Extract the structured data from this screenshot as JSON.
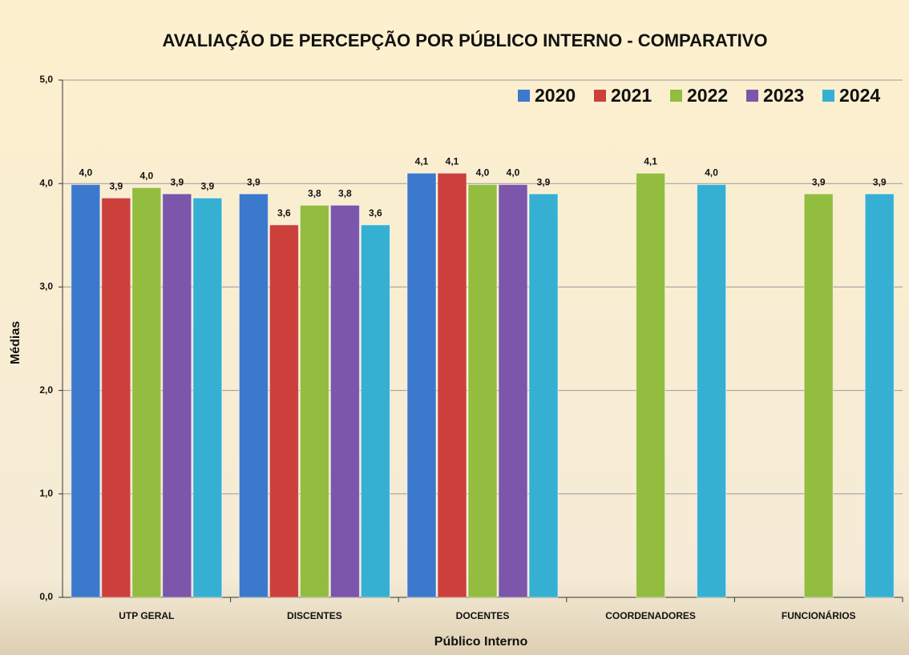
{
  "chart_data": {
    "type": "bar",
    "title": "AVALIAÇÃO DE PERCEPÇÃO POR PÚBLICO INTERNO - COMPARATIVO",
    "x_label": "Público Interno",
    "y_label": "Médias",
    "categories": [
      "UTP GERAL",
      "DISCENTES",
      "DOCENTES",
      "COORDENADORES",
      "FUNCIONÁRIOS"
    ],
    "series": [
      {
        "name": "2020",
        "color": "#3b79cc",
        "values": [
          3.99,
          3.9,
          4.1,
          null,
          null
        ],
        "value_labels": [
          "4,0",
          "3,9",
          "4,1",
          null,
          null
        ]
      },
      {
        "name": "2021",
        "color": "#cc403c",
        "values": [
          3.86,
          3.6,
          4.1,
          null,
          null
        ],
        "value_labels": [
          "3,9",
          "3,6",
          "4,1",
          null,
          null
        ]
      },
      {
        "name": "2022",
        "color": "#92bd3e",
        "values": [
          3.96,
          3.79,
          3.99,
          4.1,
          3.9
        ],
        "value_labels": [
          "4,0",
          "3,8",
          "4,0",
          "4,1",
          "3,9"
        ]
      },
      {
        "name": "2023",
        "color": "#7b56aa",
        "values": [
          3.9,
          3.79,
          3.99,
          null,
          null
        ],
        "value_labels": [
          "3,9",
          "3,8",
          "4,0",
          null,
          null
        ]
      },
      {
        "name": "2024",
        "color": "#35b0d3",
        "values": [
          3.86,
          3.6,
          3.9,
          3.99,
          3.9
        ],
        "value_labels": [
          "3,9",
          "3,6",
          "3,9",
          "4,0",
          "3,9"
        ]
      }
    ],
    "ylim": [
      0,
      5
    ],
    "yticks": [
      {
        "value": 0,
        "label": "0,0"
      },
      {
        "value": 1,
        "label": "1,0"
      },
      {
        "value": 2,
        "label": "2,0"
      },
      {
        "value": 3,
        "label": "3,0"
      },
      {
        "value": 4,
        "label": "4,0"
      },
      {
        "value": 5,
        "label": "5,0"
      }
    ],
    "grid": true,
    "legend": "top-right"
  }
}
